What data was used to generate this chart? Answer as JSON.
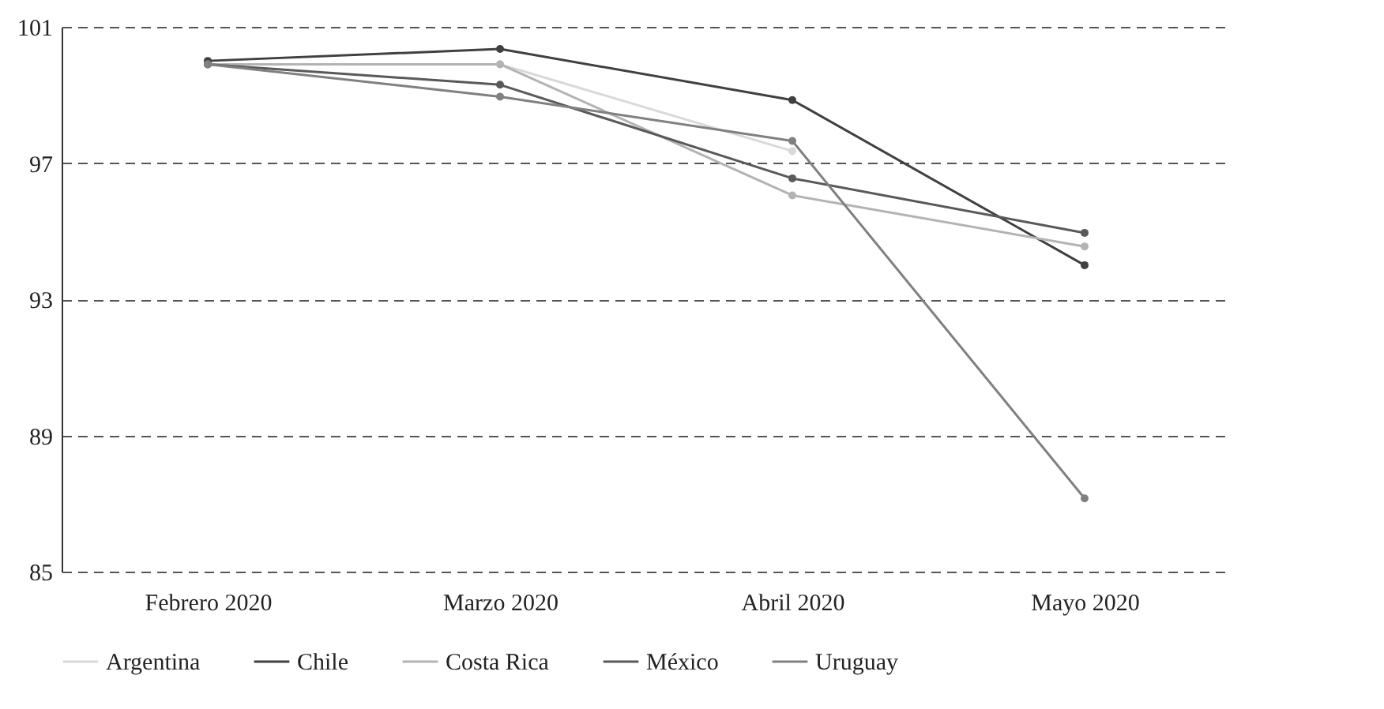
{
  "chart_data": {
    "type": "line",
    "categories": [
      "Febrero 2020",
      "Marzo 2020",
      "Abril 2020",
      "Mayo 2020"
    ],
    "series": [
      {
        "name": "Argentina",
        "color": "#d9d9d9",
        "values": [
          99.9,
          99.9,
          97.35,
          null
        ]
      },
      {
        "name": "Chile",
        "color": "#404040",
        "values": [
          100.0,
          100.35,
          98.85,
          94.0
        ]
      },
      {
        "name": "Costa Rica",
        "color": "#b3b3b3",
        "values": [
          99.9,
          99.9,
          96.05,
          94.55
        ]
      },
      {
        "name": "México",
        "color": "#595959",
        "values": [
          99.9,
          99.3,
          96.55,
          94.95
        ]
      },
      {
        "name": "Uruguay",
        "color": "#808080",
        "values": [
          99.9,
          98.95,
          97.65,
          87.15
        ]
      }
    ],
    "ylim": [
      85,
      101
    ],
    "yticks": [
      85,
      89,
      93,
      97,
      101
    ],
    "grid": "y",
    "legend": "bottom",
    "marker": "circle",
    "line_style": "solid"
  }
}
